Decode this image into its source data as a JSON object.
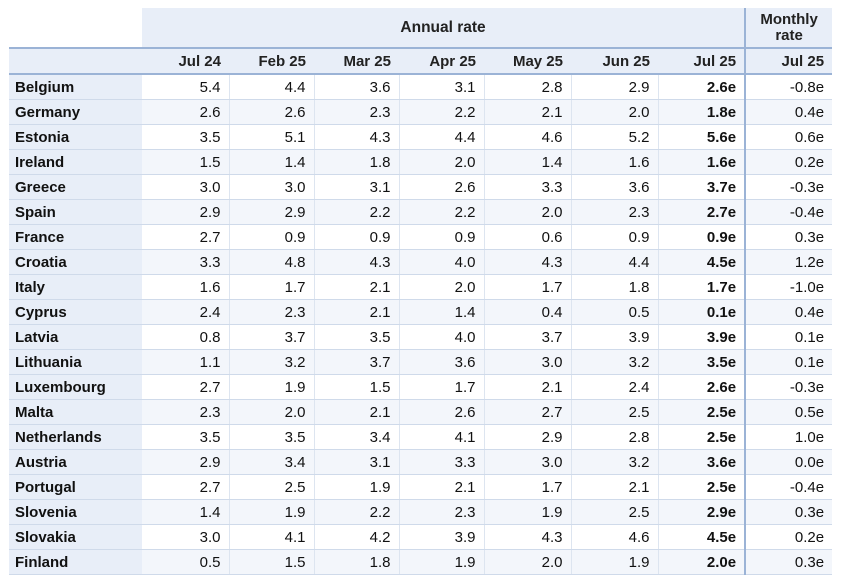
{
  "table": {
    "group_headers": {
      "annual": "Annual rate",
      "monthly": "Monthly rate"
    },
    "columns": [
      "Jul 24",
      "Feb 25",
      "Mar 25",
      "Apr 25",
      "May 25",
      "Jun 25",
      "Jul 25",
      "Jul 25"
    ]
  },
  "chart_data": {
    "type": "table",
    "columns": [
      "Jul 24",
      "Feb 25",
      "Mar 25",
      "Apr 25",
      "May 25",
      "Jun 25",
      "Jul 25",
      "Jul 25"
    ],
    "rows": [
      {
        "country": "Belgium",
        "values": [
          "5.4",
          "4.4",
          "3.6",
          "3.1",
          "2.8",
          "2.9",
          "2.6e",
          "-0.8e"
        ]
      },
      {
        "country": "Germany",
        "values": [
          "2.6",
          "2.6",
          "2.3",
          "2.2",
          "2.1",
          "2.0",
          "1.8e",
          "0.4e"
        ]
      },
      {
        "country": "Estonia",
        "values": [
          "3.5",
          "5.1",
          "4.3",
          "4.4",
          "4.6",
          "5.2",
          "5.6e",
          "0.6e"
        ]
      },
      {
        "country": "Ireland",
        "values": [
          "1.5",
          "1.4",
          "1.8",
          "2.0",
          "1.4",
          "1.6",
          "1.6e",
          "0.2e"
        ]
      },
      {
        "country": "Greece",
        "values": [
          "3.0",
          "3.0",
          "3.1",
          "2.6",
          "3.3",
          "3.6",
          "3.7e",
          "-0.3e"
        ]
      },
      {
        "country": "Spain",
        "values": [
          "2.9",
          "2.9",
          "2.2",
          "2.2",
          "2.0",
          "2.3",
          "2.7e",
          "-0.4e"
        ]
      },
      {
        "country": "France",
        "values": [
          "2.7",
          "0.9",
          "0.9",
          "0.9",
          "0.6",
          "0.9",
          "0.9e",
          "0.3e"
        ]
      },
      {
        "country": "Croatia",
        "values": [
          "3.3",
          "4.8",
          "4.3",
          "4.0",
          "4.3",
          "4.4",
          "4.5e",
          "1.2e"
        ]
      },
      {
        "country": "Italy",
        "values": [
          "1.6",
          "1.7",
          "2.1",
          "2.0",
          "1.7",
          "1.8",
          "1.7e",
          "-1.0e"
        ]
      },
      {
        "country": "Cyprus",
        "values": [
          "2.4",
          "2.3",
          "2.1",
          "1.4",
          "0.4",
          "0.5",
          "0.1e",
          "0.4e"
        ]
      },
      {
        "country": "Latvia",
        "values": [
          "0.8",
          "3.7",
          "3.5",
          "4.0",
          "3.7",
          "3.9",
          "3.9e",
          "0.1e"
        ]
      },
      {
        "country": "Lithuania",
        "values": [
          "1.1",
          "3.2",
          "3.7",
          "3.6",
          "3.0",
          "3.2",
          "3.5e",
          "0.1e"
        ]
      },
      {
        "country": "Luxembourg",
        "values": [
          "2.7",
          "1.9",
          "1.5",
          "1.7",
          "2.1",
          "2.4",
          "2.6e",
          "-0.3e"
        ]
      },
      {
        "country": "Malta",
        "values": [
          "2.3",
          "2.0",
          "2.1",
          "2.6",
          "2.7",
          "2.5",
          "2.5e",
          "0.5e"
        ]
      },
      {
        "country": "Netherlands",
        "values": [
          "3.5",
          "3.5",
          "3.4",
          "4.1",
          "2.9",
          "2.8",
          "2.5e",
          "1.0e"
        ]
      },
      {
        "country": "Austria",
        "values": [
          "2.9",
          "3.4",
          "3.1",
          "3.3",
          "3.0",
          "3.2",
          "3.6e",
          "0.0e"
        ]
      },
      {
        "country": "Portugal",
        "values": [
          "2.7",
          "2.5",
          "1.9",
          "2.1",
          "1.7",
          "2.1",
          "2.5e",
          "-0.4e"
        ]
      },
      {
        "country": "Slovenia",
        "values": [
          "1.4",
          "1.9",
          "2.2",
          "2.3",
          "1.9",
          "2.5",
          "2.9e",
          "0.3e"
        ]
      },
      {
        "country": "Slovakia",
        "values": [
          "3.0",
          "4.1",
          "4.2",
          "3.9",
          "4.3",
          "4.6",
          "4.5e",
          "0.2e"
        ]
      },
      {
        "country": "Finland",
        "values": [
          "0.5",
          "1.5",
          "1.8",
          "1.9",
          "2.0",
          "1.9",
          "2.0e",
          "0.3e"
        ]
      }
    ]
  }
}
